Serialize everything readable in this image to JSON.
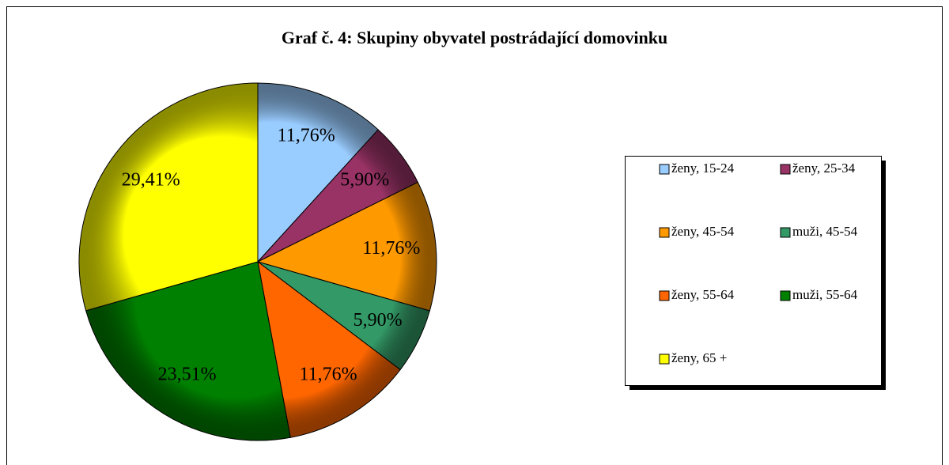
{
  "chart_data": {
    "type": "pie",
    "title": "Graf č. 4: Skupiny obyvatel postrádající domovinku",
    "categories": [
      "ženy, 15-24",
      "ženy, 25-34",
      "ženy, 45-54",
      "muži, 45-54",
      "ženy, 55-64",
      "muži, 55-64",
      "ženy, 65 +"
    ],
    "values": [
      11.76,
      5.9,
      11.76,
      5.9,
      11.76,
      23.51,
      29.41
    ],
    "value_labels": [
      "11,76%",
      "5,90%",
      "11,76%",
      "5,90%",
      "11,76%",
      "23,51%",
      "29,41%"
    ],
    "colors": [
      "#99ccff",
      "#993366",
      "#ff9900",
      "#339966",
      "#ff6600",
      "#008000",
      "#ffff00"
    ],
    "legend": "right"
  }
}
